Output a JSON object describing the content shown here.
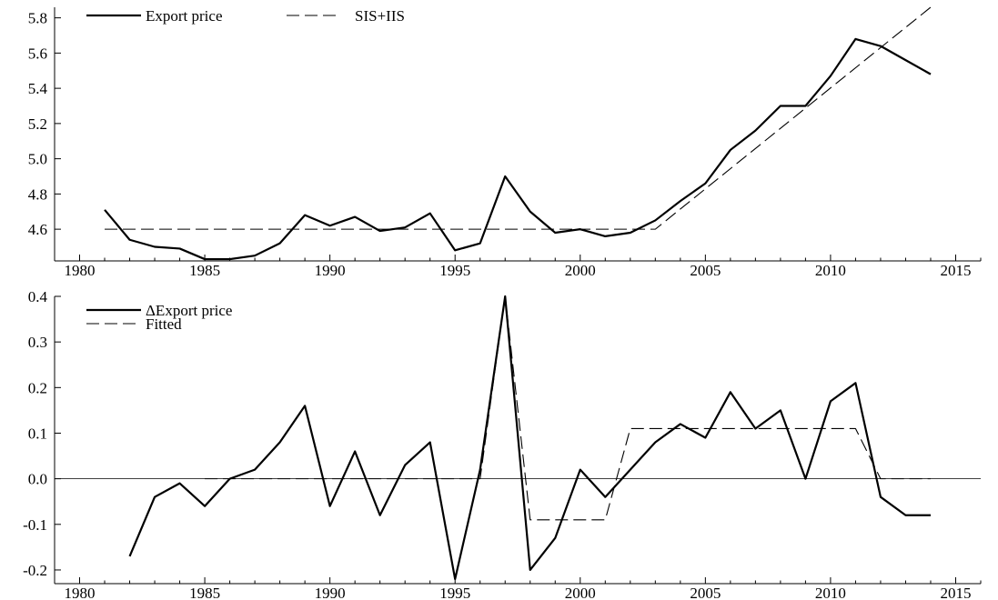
{
  "chart_data": [
    {
      "type": "line",
      "xlim": [
        1979,
        2016
      ],
      "ylim": [
        4.42,
        5.86
      ],
      "xticks": [
        1980,
        1985,
        1990,
        1995,
        2000,
        2005,
        2010,
        2015
      ],
      "yticks": [
        4.6,
        4.8,
        5.0,
        5.2,
        5.4,
        5.6,
        5.8
      ],
      "xtick_labels": [
        "1980",
        "1985",
        "1990",
        "1995",
        "2000",
        "2005",
        "2010",
        "2015"
      ],
      "ytick_labels": [
        "4.6",
        "4.8",
        "5.0",
        "5.2",
        "5.4",
        "5.6",
        "5.8"
      ],
      "grid": false,
      "legend_position": "top-left",
      "series": [
        {
          "name": "Export price",
          "style": "solid",
          "x": [
            1981,
            1982,
            1983,
            1984,
            1985,
            1986,
            1987,
            1988,
            1989,
            1990,
            1991,
            1992,
            1993,
            1994,
            1995,
            1996,
            1997,
            1998,
            1999,
            2000,
            2001,
            2002,
            2003,
            2004,
            2005,
            2006,
            2007,
            2008,
            2009,
            2010,
            2011,
            2012,
            2013,
            2014
          ],
          "y": [
            4.71,
            4.54,
            4.5,
            4.49,
            4.43,
            4.43,
            4.45,
            4.52,
            4.68,
            4.62,
            4.67,
            4.59,
            4.61,
            4.69,
            4.48,
            4.52,
            4.9,
            4.7,
            4.58,
            4.6,
            4.56,
            4.58,
            4.65,
            4.76,
            4.86,
            5.05,
            5.16,
            5.3,
            5.3,
            5.47,
            5.68,
            5.64,
            5.56,
            5.48
          ]
        },
        {
          "name": "SIS+IIS",
          "style": "dashed",
          "x": [
            1981,
            2003,
            2014
          ],
          "y": [
            4.6,
            4.6,
            5.86
          ]
        }
      ]
    },
    {
      "type": "line",
      "xlim": [
        1979,
        2016
      ],
      "ylim": [
        -0.23,
        0.4
      ],
      "xticks": [
        1980,
        1985,
        1990,
        1995,
        2000,
        2005,
        2010,
        2015
      ],
      "yticks": [
        -0.2,
        -0.1,
        0.0,
        0.1,
        0.2,
        0.3,
        0.4
      ],
      "xtick_labels": [
        "1980",
        "1985",
        "1990",
        "1995",
        "2000",
        "2005",
        "2010",
        "2015"
      ],
      "ytick_labels": [
        "-0.2",
        "-0.1",
        "0.0",
        "0.1",
        "0.2",
        "0.3",
        "0.4"
      ],
      "grid": false,
      "zero_line": true,
      "legend_position": "top-left",
      "series": [
        {
          "name": "ΔExport price",
          "style": "solid",
          "x": [
            1982,
            1983,
            1984,
            1985,
            1986,
            1987,
            1988,
            1989,
            1990,
            1991,
            1992,
            1993,
            1994,
            1995,
            1996,
            1997,
            1998,
            1999,
            2000,
            2001,
            2002,
            2003,
            2004,
            2005,
            2006,
            2007,
            2008,
            2009,
            2010,
            2011,
            2012,
            2013,
            2014
          ],
          "y": [
            -0.17,
            -0.04,
            -0.01,
            -0.06,
            0.0,
            0.02,
            0.08,
            0.16,
            -0.06,
            0.06,
            -0.08,
            0.03,
            0.08,
            -0.22,
            0.02,
            0.4,
            -0.2,
            -0.13,
            0.02,
            -0.04,
            0.02,
            0.08,
            0.12,
            0.09,
            0.19,
            0.11,
            0.15,
            0.0,
            0.17,
            0.21,
            -0.04,
            -0.08,
            -0.08
          ]
        },
        {
          "name": "Fitted",
          "style": "dashed",
          "x": [
            1985,
            1996,
            1997,
            1998,
            2001,
            2002,
            2011,
            2012,
            2014
          ],
          "y": [
            0.0,
            0.0,
            0.4,
            -0.09,
            -0.09,
            0.11,
            0.11,
            0.0,
            0.0
          ]
        }
      ]
    }
  ]
}
